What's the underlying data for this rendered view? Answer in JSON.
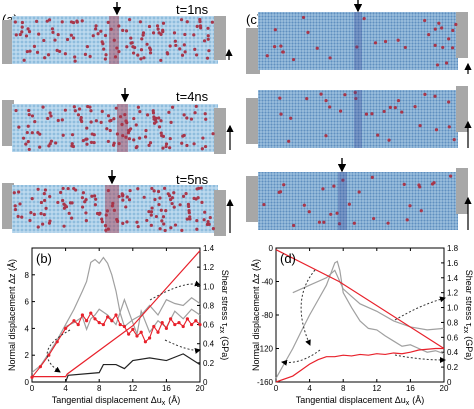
{
  "panels": {
    "a": {
      "label": "(a)",
      "times": [
        "t=1ns",
        "t=4ns",
        "t=5ns"
      ]
    },
    "c": {
      "label": "(c)"
    }
  },
  "colors": {
    "atom_blue": "#9ec6e4",
    "atom_dark": "#6f9fca",
    "defect_red": "#a8364a",
    "grip_gray": "#a7a7a7",
    "series_gray": "#a0a0a0",
    "series_red": "#e8212b",
    "series_black": "#222222"
  },
  "chart_data": [
    {
      "panel_label": "(b)",
      "type": "line",
      "xlabel": "Tangential displacement Δu",
      "xlabel_sub": "x",
      "xlabel_unit": "(Å)",
      "ylabel": "Normal displacement Δz (Å)",
      "y2label": "Shear stress τ",
      "y2label_sub": "zx",
      "y2label_unit": "(GPa)",
      "xlim": [
        0,
        20
      ],
      "ylim": [
        0,
        10
      ],
      "y2lim": [
        0,
        1.4
      ],
      "xticks": [
        0,
        4,
        8,
        12,
        16,
        20
      ],
      "yticks": [
        0,
        2,
        4,
        6,
        8
      ],
      "y2ticks": [
        0,
        0.2,
        0.4,
        0.6,
        0.8,
        1.0,
        1.2,
        1.4
      ],
      "series": [
        {
          "color": "#222222",
          "axis": "left",
          "marker": false,
          "x": [
            0,
            4,
            4.3,
            8,
            8.5,
            10,
            11,
            12,
            14,
            16,
            18,
            20
          ],
          "y": [
            0,
            0,
            0.5,
            0.7,
            1.3,
            1.3,
            1.0,
            1.6,
            1.8,
            1.6,
            2.1,
            1.3
          ]
        },
        {
          "color": "#a0a0a0",
          "axis": "right",
          "marker": false,
          "x": [
            0,
            1,
            2,
            3,
            4,
            5,
            6,
            6.5,
            7,
            7.5,
            8,
            8.5,
            9,
            9.5,
            10,
            10.5,
            11,
            12,
            13,
            14,
            15,
            16,
            17,
            18,
            19,
            20
          ],
          "y": [
            0.1,
            0.17,
            0.3,
            0.44,
            0.6,
            0.76,
            0.95,
            1.05,
            1.25,
            1.28,
            1.24,
            1.3,
            1.24,
            1.12,
            0.95,
            0.72,
            0.58,
            0.65,
            0.7,
            0.8,
            0.7,
            0.86,
            0.82,
            0.8,
            0.88,
            0.82
          ]
        },
        {
          "color": "#a0a0a0",
          "axis": "right",
          "marker": false,
          "x": [
            4,
            5,
            6,
            6.5,
            7,
            7.5,
            8,
            9,
            10,
            11,
            12,
            12.5,
            13,
            14,
            15,
            16,
            17,
            18,
            19,
            20
          ],
          "y": [
            0.58,
            0.62,
            0.68,
            0.55,
            0.66,
            0.7,
            0.76,
            0.7,
            0.6,
            0.86,
            0.62,
            0.5,
            0.74,
            0.52,
            0.64,
            0.57,
            0.74,
            0.66,
            0.76,
            0.7
          ]
        },
        {
          "color": "#e8212b",
          "axis": "left",
          "marker": false,
          "x": [
            0,
            4,
            4.2,
            12,
            20
          ],
          "y": [
            0.4,
            0.4,
            0.6,
            4.2,
            9.8
          ]
        },
        {
          "color": "#e8212b",
          "axis": "right",
          "marker": true,
          "x": [
            0,
            1,
            2,
            3,
            4,
            5,
            5.5,
            6,
            6.5,
            7,
            7.5,
            8,
            8.5,
            9,
            9.5,
            10,
            10.5,
            11,
            11.5,
            12,
            12.5,
            13,
            13.5,
            14,
            14.5,
            15,
            15.5,
            16,
            16.5,
            17,
            17.5,
            18,
            18.5,
            19,
            19.5,
            20
          ],
          "y": [
            0.05,
            0.16,
            0.28,
            0.42,
            0.56,
            0.64,
            0.6,
            0.7,
            0.64,
            0.72,
            0.66,
            0.62,
            0.6,
            0.68,
            0.64,
            0.7,
            0.6,
            0.58,
            0.5,
            0.55,
            0.48,
            0.52,
            0.42,
            0.46,
            0.58,
            0.52,
            0.62,
            0.56,
            0.66,
            0.6,
            0.62,
            0.58,
            0.66,
            0.6,
            0.64,
            0.6
          ]
        }
      ]
    },
    {
      "panel_label": "(d)",
      "type": "line",
      "xlabel": "Tangential displacement Δu",
      "xlabel_sub": "x",
      "xlabel_unit": "(Å)",
      "ylabel": "Normal displacement Δz (Å)",
      "y2label": "Shear stress τ",
      "y2label_sub": "zx",
      "y2label_unit": "(GPa)",
      "xlim": [
        0,
        20
      ],
      "ylim": [
        -160,
        0
      ],
      "y2lim": [
        0,
        1.8
      ],
      "xticks": [
        0,
        4,
        8,
        12,
        16,
        20
      ],
      "yticks": [
        0,
        -40,
        -80,
        -120,
        -160
      ],
      "y2ticks": [
        0,
        0.2,
        0.4,
        0.6,
        0.8,
        1.0,
        1.2,
        1.4,
        1.6,
        1.8
      ],
      "series": [
        {
          "color": "#a0a0a0",
          "axis": "right",
          "marker": false,
          "x": [
            0,
            1,
            2,
            3,
            4,
            5,
            6,
            6.5,
            7,
            7.3,
            7.6,
            8,
            9,
            10,
            11,
            12,
            13,
            14,
            15,
            16,
            17,
            18,
            19,
            20
          ],
          "y": [
            0.05,
            0.25,
            0.45,
            0.68,
            0.9,
            1.1,
            1.3,
            1.45,
            1.6,
            1.62,
            1.5,
            1.2,
            1.0,
            0.82,
            0.72,
            0.7,
            0.62,
            0.55,
            0.48,
            0.5,
            0.45,
            0.4,
            0.42,
            0.38
          ]
        },
        {
          "color": "#a0a0a0",
          "axis": "right",
          "marker": false,
          "x": [
            2,
            4,
            6,
            7,
            8,
            9,
            10,
            12,
            14,
            16,
            18,
            20
          ],
          "y": [
            1.2,
            1.3,
            1.4,
            1.5,
            1.25,
            1.15,
            1.05,
            0.95,
            0.82,
            0.74,
            0.7,
            0.72
          ]
        },
        {
          "color": "#e8212b",
          "axis": "left",
          "marker": false,
          "x": [
            0,
            7.5,
            20
          ],
          "y": [
            -2,
            -40,
            -120
          ]
        },
        {
          "color": "#e8212b",
          "axis": "right",
          "marker": false,
          "x": [
            0,
            2,
            3,
            4,
            5,
            6,
            7,
            8,
            9,
            10,
            11,
            12,
            13,
            14,
            15,
            16,
            17,
            18,
            19,
            20
          ],
          "y": [
            0,
            0.08,
            0.16,
            0.24,
            0.3,
            0.34,
            0.34,
            0.36,
            0.35,
            0.37,
            0.36,
            0.38,
            0.37,
            0.39,
            0.38,
            0.4,
            0.43,
            0.44,
            0.45,
            0.45
          ]
        }
      ]
    }
  ]
}
